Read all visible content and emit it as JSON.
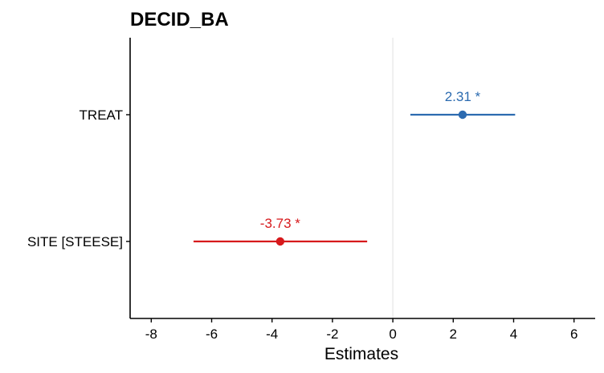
{
  "chart_data": {
    "type": "forest",
    "title": "DECID_BA",
    "xlabel": "Estimates",
    "ylabel": "",
    "xlim": [
      -8.7,
      6.7
    ],
    "xticks": [
      -8,
      -6,
      -4,
      -2,
      0,
      2,
      4,
      6
    ],
    "xtick_labels": [
      "-8",
      "-6",
      "-4",
      "-2",
      "0",
      "2",
      "4",
      "6"
    ],
    "reference_line": 0,
    "grid": false,
    "terms": [
      {
        "label": "TREAT",
        "estimate": 2.31,
        "ci_low": 0.58,
        "ci_high": 4.05,
        "data_label": "2.31 *",
        "color": "#2c6bb0"
      },
      {
        "label": "SITE [STEESE]",
        "estimate": -3.73,
        "ci_low": -6.6,
        "ci_high": -0.85,
        "data_label": "-3.73 *",
        "color": "#d7191c"
      }
    ]
  },
  "colors": {
    "positive": "#2c6bb0",
    "negative": "#d7191c",
    "reference_line": "#e6e6e6",
    "axis": "#000000"
  }
}
